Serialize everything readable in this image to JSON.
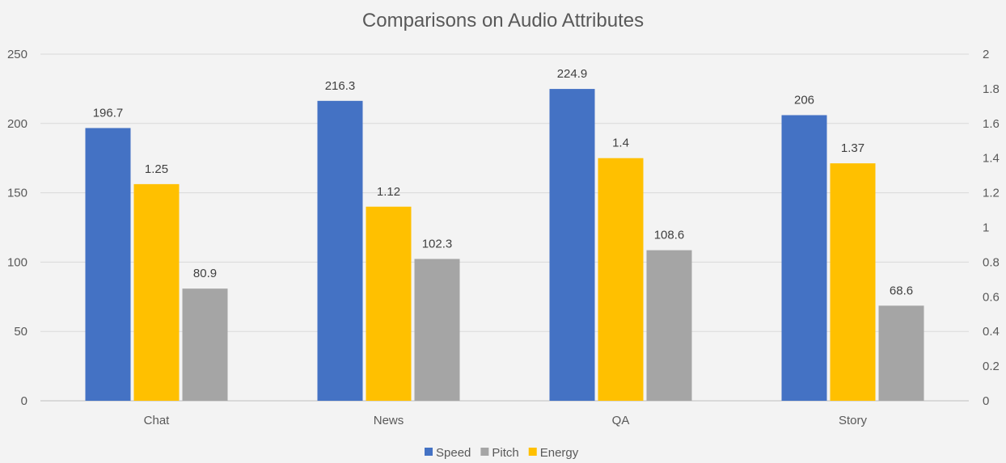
{
  "chart_data": {
    "type": "bar",
    "title": "Comparisons on Audio Attributes",
    "categories": [
      "Chat",
      "News",
      "QA",
      "Story"
    ],
    "series": [
      {
        "name": "Speed",
        "axis": "left",
        "color": "#4472c4",
        "values": [
          196.7,
          216.3,
          224.9,
          206
        ],
        "labels": [
          "196.7",
          "216.3",
          "224.9",
          "206"
        ]
      },
      {
        "name": "Energy",
        "axis": "right",
        "color": "#ffc000",
        "values": [
          1.25,
          1.12,
          1.4,
          1.37
        ],
        "labels": [
          "1.25",
          "1.12",
          "1.4",
          "1.37"
        ]
      },
      {
        "name": "Pitch",
        "axis": "left",
        "color": "#a5a5a5",
        "values": [
          80.9,
          102.3,
          108.6,
          68.6
        ],
        "labels": [
          "80.9",
          "102.3",
          "108.6",
          "68.6"
        ]
      }
    ],
    "y_left": {
      "ylim": [
        0,
        250
      ],
      "ticks": [
        "0",
        "50",
        "100",
        "150",
        "200",
        "250"
      ]
    },
    "y_right": {
      "ylim": [
        0,
        2
      ],
      "ticks": [
        "0",
        "0.2",
        "0.4",
        "0.6",
        "0.8",
        "1",
        "1.2",
        "1.4",
        "1.6",
        "1.8",
        "2"
      ]
    },
    "grid": true,
    "legend": {
      "position": "bottom",
      "items": [
        {
          "name": "Speed",
          "color": "#4472c4"
        },
        {
          "name": "Pitch",
          "color": "#a5a5a5"
        },
        {
          "name": "Energy",
          "color": "#ffc000"
        }
      ]
    }
  }
}
